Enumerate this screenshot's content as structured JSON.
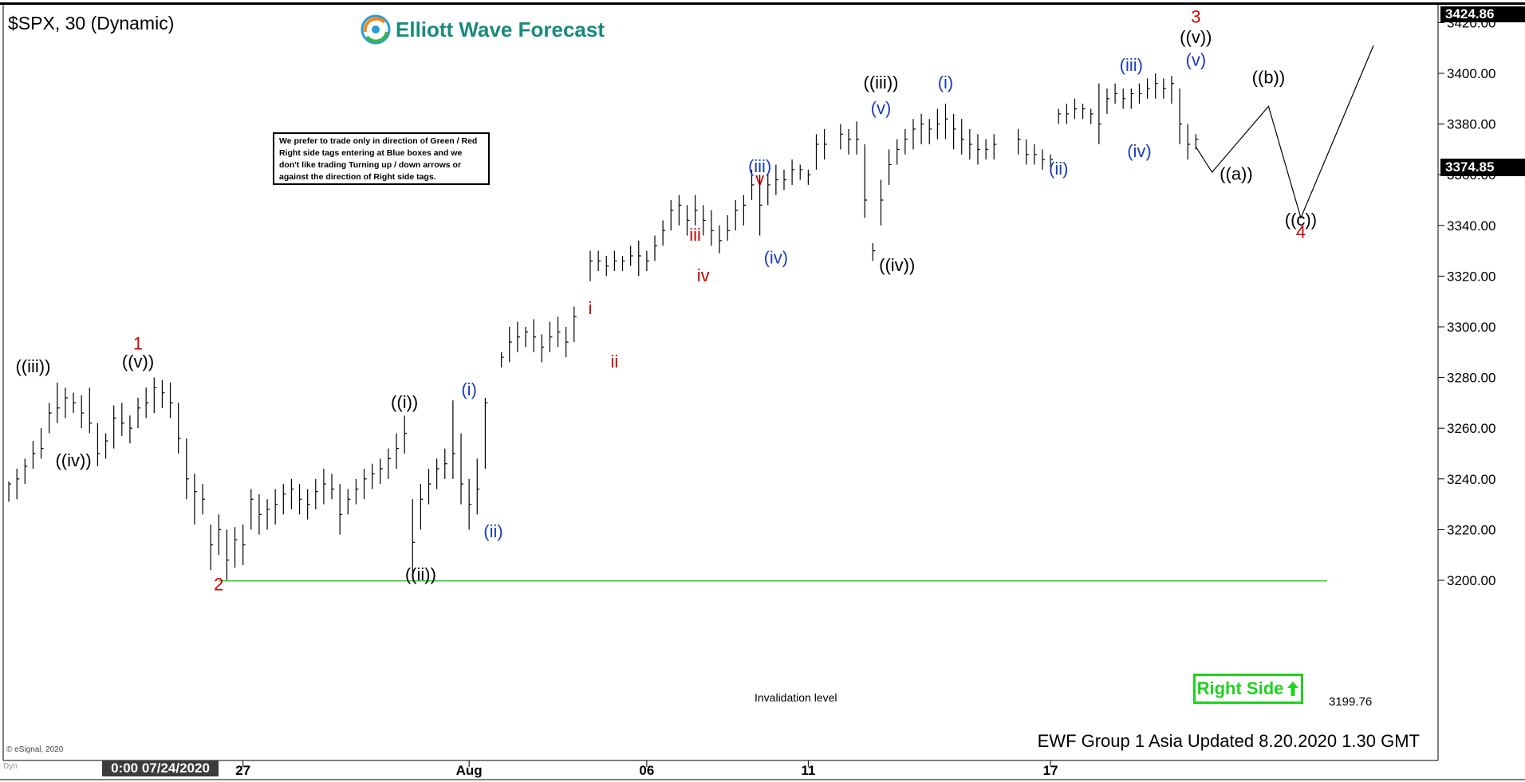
{
  "header": {
    "symbol_label": "$SPX, 30 (Dynamic)",
    "brand": "Elliott Wave Forecast",
    "brand_color": "#1a8a7a"
  },
  "note": "We prefer to trade only in direction of Green / Red Right side tags entering at Blue boxes and we don't like trading Turning up / down arrows or against the direction of Right side tags.",
  "right_side_tag": {
    "label": "Right Side",
    "icon": "up-arrow-icon",
    "color": "#1fd21f"
  },
  "invalidation": {
    "label": "Invalidation level",
    "value_label": "3199.76",
    "value": 3199.76,
    "color": "#2ecc2e"
  },
  "footer": {
    "update_text": "EWF Group 1 Asia Updated 8.20.2020 1.30 GMT",
    "copyright": "© eSignal, 2020",
    "date_stamp": "0:00 07/24/2020",
    "dyn_tag": "Dyn"
  },
  "price_tags": {
    "high_label": "3424.86",
    "last_label": "3374.85"
  },
  "chart_data": {
    "type": "ohlc",
    "title": "$SPX, 30 (Dynamic)",
    "ylim": [
      3185,
      3428
    ],
    "y_ticks": [
      "3420.00",
      "3400.00",
      "3380.00",
      "3360.00",
      "3340.00",
      "3320.00",
      "3300.00",
      "3280.00",
      "3260.00",
      "3240.00",
      "3220.00",
      "3200.00"
    ],
    "x_ticks": [
      {
        "label": "27",
        "slot": 29.5
      },
      {
        "label": "Aug",
        "slot": 57.5
      },
      {
        "label": "06",
        "slot": 79.5
      },
      {
        "label": "11",
        "slot": 99.5
      },
      {
        "label": "17",
        "slot": 129.5
      }
    ],
    "slot_count": 177,
    "bars": [
      [
        3239,
        3231,
        3238
      ],
      [
        3244,
        3232,
        3240
      ],
      [
        3248,
        3238,
        3245
      ],
      [
        3255,
        3244,
        3250
      ],
      [
        3260,
        3248,
        3252
      ],
      [
        3270,
        3258,
        3266
      ],
      [
        3278,
        3262,
        3268
      ],
      [
        3276,
        3264,
        3272
      ],
      [
        3274,
        3266,
        3270
      ],
      [
        3273,
        3260,
        3266
      ],
      [
        3276,
        3258,
        3262
      ],
      [
        3262,
        3245,
        3250
      ],
      [
        3258,
        3248,
        3255
      ],
      [
        3269,
        3252,
        3264
      ],
      [
        3270,
        3257,
        3262
      ],
      [
        3265,
        3254,
        3260
      ],
      [
        3272,
        3260,
        3268
      ],
      [
        3276,
        3264,
        3270
      ],
      [
        3280,
        3266,
        3276
      ],
      [
        3279,
        3268,
        3274
      ],
      [
        3278,
        3264,
        3270
      ],
      [
        3270,
        3250,
        3256
      ],
      [
        3256,
        3232,
        3240
      ],
      [
        3242,
        3222,
        3235
      ],
      [
        3238,
        3226,
        3232
      ],
      [
        3222,
        3204,
        3214
      ],
      [
        3226,
        3210,
        3220
      ],
      [
        3220,
        3200,
        3208
      ],
      [
        3221,
        3205,
        3216
      ],
      [
        3222,
        3206,
        3214
      ],
      [
        3236,
        3220,
        3232
      ],
      [
        3234,
        3218,
        3226
      ],
      [
        3232,
        3220,
        3228
      ],
      [
        3236,
        3222,
        3230
      ],
      [
        3238,
        3226,
        3234
      ],
      [
        3240,
        3228,
        3236
      ],
      [
        3238,
        3226,
        3232
      ],
      [
        3236,
        3224,
        3230
      ],
      [
        3240,
        3228,
        3235
      ],
      [
        3244,
        3230,
        3238
      ],
      [
        3242,
        3232,
        3236
      ],
      [
        3238,
        3218,
        3226
      ],
      [
        3236,
        3226,
        3232
      ],
      [
        3240,
        3230,
        3236
      ],
      [
        3244,
        3232,
        3240
      ],
      [
        3246,
        3236,
        3242
      ],
      [
        3248,
        3238,
        3244
      ],
      [
        3252,
        3240,
        3248
      ],
      [
        3258,
        3244,
        3252
      ],
      [
        3265,
        3250,
        3258
      ],
      [
        3232,
        3203,
        3215
      ],
      [
        3238,
        3220,
        3232
      ],
      [
        3244,
        3230,
        3238
      ],
      [
        3248,
        3236,
        3244
      ],
      [
        3252,
        3240,
        3246
      ],
      [
        3271,
        3240,
        3250
      ],
      [
        3258,
        3230,
        3238
      ],
      [
        3240,
        3220,
        3230
      ],
      [
        3248,
        3226,
        3236
      ],
      [
        3272,
        3244,
        3270
      ],
      [
        3290,
        3284,
        3288
      ],
      [
        3300,
        3286,
        3294
      ],
      [
        3302,
        3290,
        3296
      ],
      [
        3300,
        3292,
        3298
      ],
      [
        3303,
        3290,
        3296
      ],
      [
        3297,
        3286,
        3292
      ],
      [
        3302,
        3290,
        3296
      ],
      [
        3304,
        3292,
        3298
      ],
      [
        3300,
        3288,
        3294
      ],
      [
        3308,
        3294,
        3304
      ],
      [
        3330,
        3318,
        3326
      ],
      [
        3330,
        3322,
        3326
      ],
      [
        3328,
        3320,
        3324
      ],
      [
        3330,
        3322,
        3326
      ],
      [
        3328,
        3322,
        3326
      ],
      [
        3332,
        3324,
        3328
      ],
      [
        3334,
        3320,
        3328
      ],
      [
        3330,
        3322,
        3326
      ],
      [
        3336,
        3326,
        3332
      ],
      [
        3342,
        3332,
        3338
      ],
      [
        3350,
        3338,
        3346
      ],
      [
        3352,
        3340,
        3348
      ],
      [
        3348,
        3336,
        3342
      ],
      [
        3352,
        3340,
        3346
      ],
      [
        3348,
        3336,
        3342
      ],
      [
        3346,
        3332,
        3338
      ],
      [
        3340,
        3329,
        3334
      ],
      [
        3344,
        3334,
        3338
      ],
      [
        3350,
        3338,
        3346
      ],
      [
        3352,
        3340,
        3348
      ],
      [
        3362,
        3350,
        3356
      ],
      [
        3360,
        3336,
        3348
      ],
      [
        3360,
        3348,
        3356
      ],
      [
        3364,
        3352,
        3358
      ],
      [
        3362,
        3354,
        3358
      ],
      [
        3366,
        3356,
        3362
      ],
      [
        3364,
        3358,
        3362
      ],
      [
        3362,
        3356,
        3360
      ],
      [
        3376,
        3362,
        3372
      ],
      [
        3378,
        3366,
        3372
      ],
      [
        3380,
        3370,
        3376
      ],
      [
        3378,
        3368,
        3374
      ],
      [
        3381,
        3368,
        3374
      ],
      [
        3372,
        3343,
        3350
      ],
      [
        3333,
        3326,
        3330
      ],
      [
        3358,
        3340,
        3350
      ],
      [
        3370,
        3356,
        3364
      ],
      [
        3374,
        3364,
        3370
      ],
      [
        3378,
        3368,
        3374
      ],
      [
        3382,
        3370,
        3378
      ],
      [
        3384,
        3372,
        3380
      ],
      [
        3382,
        3372,
        3378
      ],
      [
        3386,
        3374,
        3380
      ],
      [
        3388,
        3374,
        3382
      ],
      [
        3384,
        3370,
        3378
      ],
      [
        3382,
        3368,
        3374
      ],
      [
        3378,
        3366,
        3372
      ],
      [
        3376,
        3364,
        3370
      ],
      [
        3374,
        3366,
        3370
      ],
      [
        3376,
        3366,
        3372
      ],
      [
        3378,
        3368,
        3374
      ],
      [
        3374,
        3364,
        3368
      ],
      [
        3372,
        3364,
        3368
      ],
      [
        3370,
        3362,
        3366
      ],
      [
        3368,
        3362,
        3366
      ],
      [
        3386,
        3380,
        3384
      ],
      [
        3388,
        3380,
        3384
      ],
      [
        3390,
        3382,
        3386
      ],
      [
        3388,
        3382,
        3386
      ],
      [
        3386,
        3380,
        3384
      ],
      [
        3396,
        3372,
        3380
      ],
      [
        3394,
        3384,
        3390
      ],
      [
        3396,
        3388,
        3392
      ],
      [
        3394,
        3386,
        3390
      ],
      [
        3394,
        3386,
        3392
      ],
      [
        3396,
        3388,
        3392
      ],
      [
        3398,
        3390,
        3394
      ],
      [
        3400,
        3390,
        3396
      ],
      [
        3398,
        3390,
        3394
      ],
      [
        3399,
        3388,
        3396
      ],
      [
        3394,
        3372,
        3380
      ],
      [
        3380,
        3366,
        3372
      ],
      [
        3376,
        3370,
        3374
      ]
    ],
    "projection": [
      {
        "slot": 147.5,
        "price": 3371
      },
      {
        "slot": 149.5,
        "price": 3361
      },
      {
        "slot": 156.5,
        "price": 3387
      },
      {
        "slot": 160.5,
        "price": 3343
      },
      {
        "slot": 169.5,
        "price": 3411
      }
    ],
    "wave_labels": [
      {
        "text": "((iii))",
        "slot": 3.5,
        "price": 3282,
        "color": "#000"
      },
      {
        "text": "((iv))",
        "slot": 8.5,
        "price": 3245,
        "color": "#000"
      },
      {
        "text": "1",
        "slot": 16.5,
        "price": 3291,
        "color": "#cc0000"
      },
      {
        "text": "((v))",
        "slot": 16.5,
        "price": 3284,
        "color": "#000"
      },
      {
        "text": "2",
        "slot": 26.5,
        "price": 3196,
        "color": "#cc0000"
      },
      {
        "text": "((i))",
        "slot": 49.5,
        "price": 3268,
        "color": "#000"
      },
      {
        "text": "((ii))",
        "slot": 51.5,
        "price": 3200,
        "color": "#000"
      },
      {
        "text": "(i)",
        "slot": 57.5,
        "price": 3273,
        "color": "#1a3dbf"
      },
      {
        "text": "(ii)",
        "slot": 60.5,
        "price": 3217,
        "color": "#1a3dbf"
      },
      {
        "text": "i",
        "slot": 72.5,
        "price": 3305,
        "color": "#cc0000"
      },
      {
        "text": "ii",
        "slot": 75.5,
        "price": 3284,
        "color": "#cc0000"
      },
      {
        "text": "iii",
        "slot": 85.5,
        "price": 3334,
        "color": "#cc0000"
      },
      {
        "text": "iv",
        "slot": 86.5,
        "price": 3318,
        "color": "#cc0000"
      },
      {
        "text": "(iii)",
        "slot": 93.5,
        "price": 3361,
        "color": "#1a3dbf"
      },
      {
        "text": "v",
        "slot": 93.5,
        "price": 3356,
        "color": "#cc0000"
      },
      {
        "text": "(iv)",
        "slot": 95.5,
        "price": 3325,
        "color": "#1a3dbf"
      },
      {
        "text": "((iii))",
        "slot": 108.5,
        "price": 3394,
        "color": "#000"
      },
      {
        "text": "(v)",
        "slot": 108.5,
        "price": 3384,
        "color": "#1a3dbf"
      },
      {
        "text": "((iv))",
        "slot": 110.5,
        "price": 3322,
        "color": "#000"
      },
      {
        "text": "(i)",
        "slot": 116.5,
        "price": 3394,
        "color": "#1a3dbf"
      },
      {
        "text": "(ii)",
        "slot": 130.5,
        "price": 3360,
        "color": "#1a3dbf"
      },
      {
        "text": "(iii)",
        "slot": 139.5,
        "price": 3401,
        "color": "#1a3dbf"
      },
      {
        "text": "(iv)",
        "slot": 140.5,
        "price": 3367,
        "color": "#1a3dbf"
      },
      {
        "text": "3",
        "slot": 147.5,
        "price": 3420,
        "color": "#cc0000"
      },
      {
        "text": "((v))",
        "slot": 147.5,
        "price": 3412,
        "color": "#000"
      },
      {
        "text": "(v)",
        "slot": 147.5,
        "price": 3403,
        "color": "#1a3dbf"
      },
      {
        "text": "((a))",
        "slot": 152.5,
        "price": 3358,
        "color": "#000"
      },
      {
        "text": "((b))",
        "slot": 156.5,
        "price": 3396,
        "color": "#000"
      },
      {
        "text": "((c))",
        "slot": 160.5,
        "price": 3340,
        "color": "#000"
      },
      {
        "text": "4",
        "slot": 160.5,
        "price": 3335,
        "color": "#cc0000"
      }
    ]
  }
}
